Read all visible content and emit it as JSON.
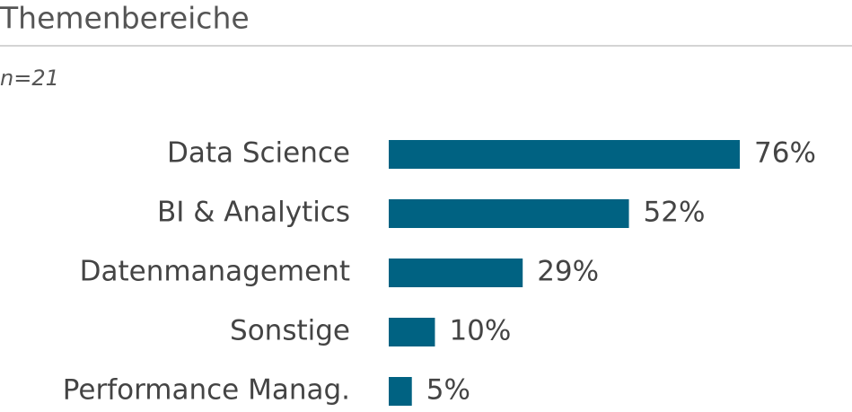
{
  "chart_data": {
    "type": "bar",
    "orientation": "horizontal",
    "title": "Themenbereiche",
    "subtitle": "n=21",
    "categories": [
      "Data Science",
      "BI & Analytics",
      "Datenmanagement",
      "Sonstige",
      "Performance Manag."
    ],
    "values": [
      76,
      52,
      29,
      10,
      5
    ],
    "value_labels": [
      "76%",
      "52%",
      "29%",
      "10%",
      "5%"
    ],
    "color": "#006282"
  }
}
